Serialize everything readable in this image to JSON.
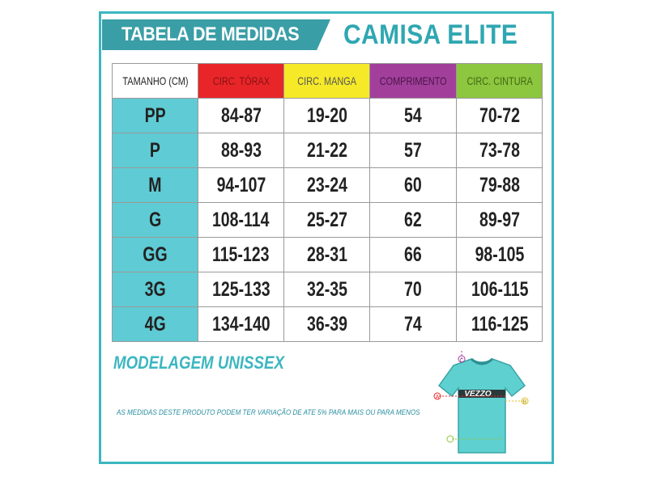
{
  "header": {
    "title": "TABELA DE MEDIDAS",
    "subtitle": "CAMISA ELITE"
  },
  "table": {
    "columns": [
      "TAMANHO (CM)",
      "CIRC. TÓRAX",
      "CIRC. MANGA",
      "COMPRIMENTO",
      "CIRC. CINTURA"
    ],
    "rows": [
      [
        "PP",
        "84-87",
        "19-20",
        "54",
        "70-72"
      ],
      [
        "P",
        "88-93",
        "21-22",
        "57",
        "73-78"
      ],
      [
        "M",
        "94-107",
        "23-24",
        "60",
        "79-88"
      ],
      [
        "G",
        "108-114",
        "25-27",
        "62",
        "89-97"
      ],
      [
        "GG",
        "115-123",
        "28-31",
        "66",
        "98-105"
      ],
      [
        "3G",
        "125-133",
        "32-35",
        "70",
        "106-115"
      ],
      [
        "4G",
        "134-140",
        "36-39",
        "74",
        "116-125"
      ]
    ]
  },
  "footer": {
    "model": "MODELAGEM UNISSEX",
    "note": "AS MEDIDAS DESTE PRODUTO PODEM TER VARIAÇÃO DE ATE 5% PARA MAIS OU PARA MENOS"
  },
  "jersey": {
    "brand": "VEZZO",
    "markers": [
      "C",
      "A",
      "B"
    ]
  }
}
